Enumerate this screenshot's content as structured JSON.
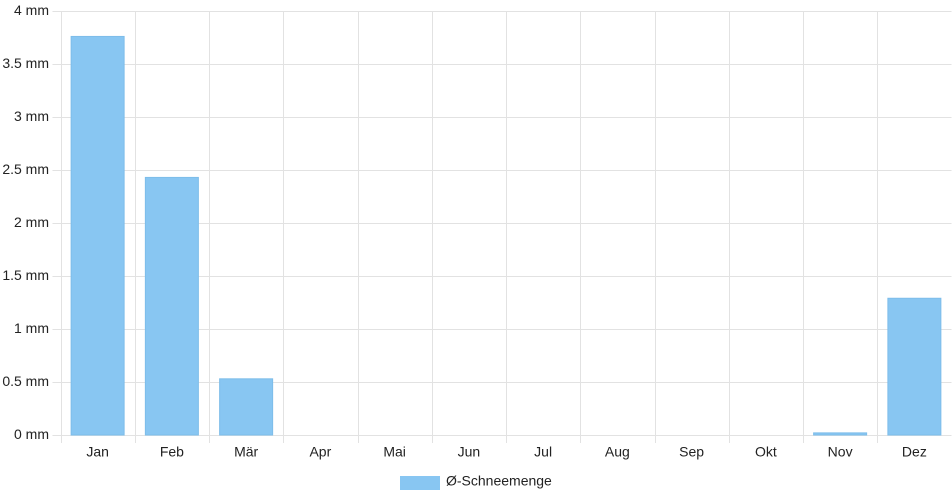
{
  "chart_data": {
    "type": "bar",
    "categories": [
      "Jan",
      "Feb",
      "Mär",
      "Apr",
      "Mai",
      "Jun",
      "Jul",
      "Aug",
      "Sep",
      "Okt",
      "Nov",
      "Dez"
    ],
    "series": [
      {
        "name": "Ø-Schneemenge",
        "color": "#88c6f2",
        "values": [
          3.76,
          2.43,
          0.53,
          0,
          0,
          0,
          0,
          0,
          0,
          0,
          0.02,
          1.29
        ]
      }
    ],
    "ylim": [
      0,
      4
    ],
    "yticks": [
      {
        "value": 0,
        "label": "0 mm"
      },
      {
        "value": 0.5,
        "label": "0.5 mm"
      },
      {
        "value": 1,
        "label": "1 mm"
      },
      {
        "value": 1.5,
        "label": "1.5 mm"
      },
      {
        "value": 2,
        "label": "2 mm"
      },
      {
        "value": 2.5,
        "label": "2.5 mm"
      },
      {
        "value": 3,
        "label": "3 mm"
      },
      {
        "value": 3.5,
        "label": "3.5 mm"
      },
      {
        "value": 4,
        "label": "4 mm"
      }
    ],
    "grid": true,
    "legend": "bottom"
  }
}
